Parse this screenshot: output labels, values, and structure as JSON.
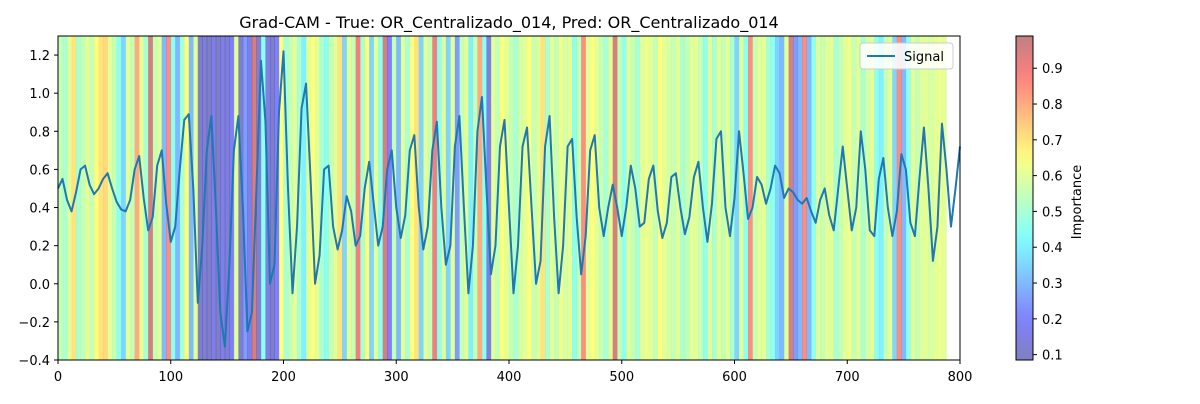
{
  "chart_data": {
    "type": "line",
    "title": "Grad-CAM - True: OR_Centralizado_014, Pred: OR_Centralizado_014",
    "xlabel": "",
    "ylabel": "",
    "xlim": [
      0,
      800
    ],
    "ylim": [
      -0.4,
      1.3
    ],
    "x_ticks": [
      0,
      100,
      200,
      300,
      400,
      500,
      600,
      700,
      800
    ],
    "y_ticks": [
      -0.4,
      -0.2,
      0.0,
      0.2,
      0.4,
      0.6,
      0.8,
      1.0,
      1.2
    ],
    "x_tick_labels": [
      "0",
      "100",
      "200",
      "300",
      "400",
      "500",
      "600",
      "700",
      "800"
    ],
    "y_tick_labels": [
      "−0.4",
      "−0.2",
      "0.0",
      "0.2",
      "0.4",
      "0.6",
      "0.8",
      "1.0",
      "1.2"
    ],
    "grid": false,
    "legend": {
      "position": "top-right",
      "entries": [
        "Signal"
      ]
    },
    "series": [
      {
        "name": "Signal",
        "color": "#1f77b4",
        "x": [
          0,
          4,
          8,
          12,
          16,
          20,
          24,
          28,
          32,
          36,
          40,
          44,
          48,
          52,
          56,
          60,
          64,
          68,
          72,
          76,
          80,
          84,
          88,
          92,
          96,
          100,
          104,
          108,
          112,
          116,
          120,
          124,
          128,
          132,
          136,
          140,
          144,
          148,
          152,
          156,
          160,
          164,
          168,
          172,
          176,
          180,
          184,
          188,
          192,
          196,
          200,
          204,
          208,
          212,
          216,
          220,
          224,
          228,
          232,
          236,
          240,
          244,
          248,
          252,
          256,
          260,
          264,
          268,
          272,
          276,
          280,
          284,
          288,
          292,
          296,
          300,
          304,
          308,
          312,
          316,
          320,
          324,
          328,
          332,
          336,
          340,
          344,
          348,
          352,
          356,
          360,
          364,
          368,
          372,
          376,
          380,
          384,
          388,
          392,
          396,
          400,
          404,
          408,
          412,
          416,
          420,
          424,
          428,
          432,
          436,
          440,
          444,
          448,
          452,
          456,
          460,
          464,
          468,
          472,
          476,
          480,
          484,
          488,
          492,
          496,
          500,
          504,
          508,
          512,
          516,
          520,
          524,
          528,
          532,
          536,
          540,
          544,
          548,
          552,
          556,
          560,
          564,
          568,
          572,
          576,
          580,
          584,
          588,
          592,
          596,
          600,
          604,
          608,
          612,
          616,
          620,
          624,
          628,
          632,
          636,
          640,
          644,
          648,
          652,
          656,
          660,
          664,
          668,
          672,
          676,
          680,
          684,
          688,
          692,
          696,
          700,
          704,
          708,
          712,
          716,
          720,
          724,
          728,
          732,
          736,
          740,
          744,
          748,
          752,
          756,
          760,
          764,
          768,
          772,
          776,
          780,
          784,
          788,
          792,
          796,
          800
        ],
        "y": [
          0.5,
          0.55,
          0.44,
          0.38,
          0.48,
          0.6,
          0.62,
          0.52,
          0.47,
          0.5,
          0.55,
          0.58,
          0.5,
          0.43,
          0.39,
          0.38,
          0.44,
          0.6,
          0.67,
          0.45,
          0.28,
          0.35,
          0.62,
          0.7,
          0.42,
          0.22,
          0.3,
          0.6,
          0.86,
          0.89,
          0.5,
          -0.1,
          0.2,
          0.7,
          0.88,
          0.4,
          -0.15,
          -0.33,
          0.1,
          0.7,
          0.88,
          0.4,
          -0.25,
          -0.15,
          0.5,
          1.17,
          0.85,
          0.0,
          0.1,
          0.9,
          1.22,
          0.5,
          -0.05,
          0.3,
          0.92,
          1.05,
          0.55,
          0.0,
          0.15,
          0.6,
          0.62,
          0.3,
          0.18,
          0.28,
          0.46,
          0.38,
          0.2,
          0.25,
          0.5,
          0.64,
          0.42,
          0.2,
          0.3,
          0.6,
          0.7,
          0.4,
          0.24,
          0.36,
          0.7,
          0.78,
          0.4,
          0.18,
          0.3,
          0.7,
          0.85,
          0.4,
          0.1,
          0.2,
          0.72,
          0.88,
          0.4,
          -0.05,
          0.2,
          0.8,
          0.98,
          0.5,
          0.05,
          0.2,
          0.72,
          0.86,
          0.4,
          -0.05,
          0.2,
          0.72,
          0.82,
          0.4,
          0.0,
          0.12,
          0.72,
          0.88,
          0.35,
          -0.05,
          0.2,
          0.72,
          0.76,
          0.35,
          0.05,
          0.25,
          0.7,
          0.78,
          0.4,
          0.25,
          0.4,
          0.52,
          0.4,
          0.25,
          0.4,
          0.62,
          0.5,
          0.3,
          0.32,
          0.55,
          0.62,
          0.38,
          0.24,
          0.32,
          0.56,
          0.58,
          0.4,
          0.26,
          0.35,
          0.56,
          0.64,
          0.4,
          0.22,
          0.42,
          0.76,
          0.8,
          0.4,
          0.25,
          0.45,
          0.8,
          0.58,
          0.34,
          0.4,
          0.56,
          0.52,
          0.42,
          0.5,
          0.62,
          0.58,
          0.45,
          0.5,
          0.48,
          0.44,
          0.42,
          0.45,
          0.38,
          0.32,
          0.44,
          0.5,
          0.36,
          0.28,
          0.5,
          0.72,
          0.5,
          0.28,
          0.4,
          0.8,
          0.6,
          0.28,
          0.25,
          0.55,
          0.66,
          0.4,
          0.25,
          0.38,
          0.68,
          0.6,
          0.32,
          0.25,
          0.55,
          0.82,
          0.5,
          0.12,
          0.3,
          0.84,
          0.6,
          0.3,
          0.5,
          0.72
        ]
      }
    ],
    "colorbar": {
      "label": "Importance",
      "range": [
        0.085,
        0.99
      ],
      "ticks": [
        0.1,
        0.2,
        0.3,
        0.4,
        0.5,
        0.6,
        0.7,
        0.8,
        0.9
      ],
      "tick_labels": [
        "0.1",
        "0.2",
        "0.3",
        "0.4",
        "0.5",
        "0.6",
        "0.7",
        "0.8",
        "0.9"
      ],
      "colormap": "jet",
      "alpha": 0.5
    },
    "importance_background": {
      "x_start": 0,
      "x_step": 4,
      "values": [
        0.55,
        0.5,
        0.6,
        0.7,
        0.5,
        0.55,
        0.6,
        0.55,
        0.65,
        0.7,
        0.72,
        0.6,
        0.55,
        0.45,
        0.35,
        0.6,
        0.55,
        0.8,
        0.6,
        0.5,
        0.95,
        0.55,
        0.6,
        0.3,
        0.85,
        0.45,
        0.3,
        0.5,
        0.65,
        0.3,
        0.6,
        0.1,
        0.12,
        0.1,
        0.15,
        0.1,
        0.15,
        0.12,
        0.18,
        0.6,
        0.1,
        0.25,
        0.15,
        0.95,
        0.12,
        0.45,
        0.15,
        0.1,
        0.2,
        0.65,
        0.5,
        0.55,
        0.6,
        0.5,
        0.4,
        0.6,
        0.65,
        0.6,
        0.5,
        0.45,
        0.55,
        0.6,
        0.7,
        0.35,
        0.6,
        0.55,
        0.9,
        0.5,
        0.65,
        0.35,
        0.6,
        0.45,
        0.95,
        0.2,
        0.55,
        0.3,
        0.6,
        0.5,
        0.65,
        0.7,
        0.35,
        0.6,
        0.55,
        0.9,
        0.45,
        0.6,
        0.35,
        0.6,
        0.25,
        0.55,
        0.6,
        0.4,
        0.55,
        0.8,
        0.45,
        0.15,
        0.6,
        0.55,
        0.65,
        0.6,
        0.55,
        0.5,
        0.58,
        0.6,
        0.65,
        0.55,
        0.6,
        0.7,
        0.5,
        0.6,
        0.55,
        0.62,
        0.58,
        0.6,
        0.45,
        0.55,
        0.85,
        0.6,
        0.65,
        0.6,
        0.55,
        0.5,
        0.6,
        0.95,
        0.55,
        0.45,
        0.6,
        0.55,
        0.5,
        0.6,
        0.62,
        0.6,
        0.55,
        0.65,
        0.6,
        0.58,
        0.55,
        0.6,
        0.5,
        0.55,
        0.6,
        0.6,
        0.55,
        0.45,
        0.6,
        0.5,
        0.6,
        0.55,
        0.6,
        0.5,
        0.35,
        0.6,
        0.45,
        0.85,
        0.55,
        0.6,
        0.6,
        0.5,
        0.45,
        0.35,
        0.3,
        0.6,
        0.95,
        0.25,
        0.3,
        0.85,
        0.3,
        0.45,
        0.6,
        0.55,
        0.6,
        0.6,
        0.5,
        0.55,
        0.6,
        0.62,
        0.55,
        0.6,
        0.5,
        0.58,
        0.6,
        0.45,
        0.4,
        0.55,
        0.6,
        0.35,
        0.85,
        0.3,
        0.45,
        0.6,
        0.55,
        0.6,
        0.6,
        0.58,
        0.6,
        0.62,
        0.6
      ]
    }
  }
}
